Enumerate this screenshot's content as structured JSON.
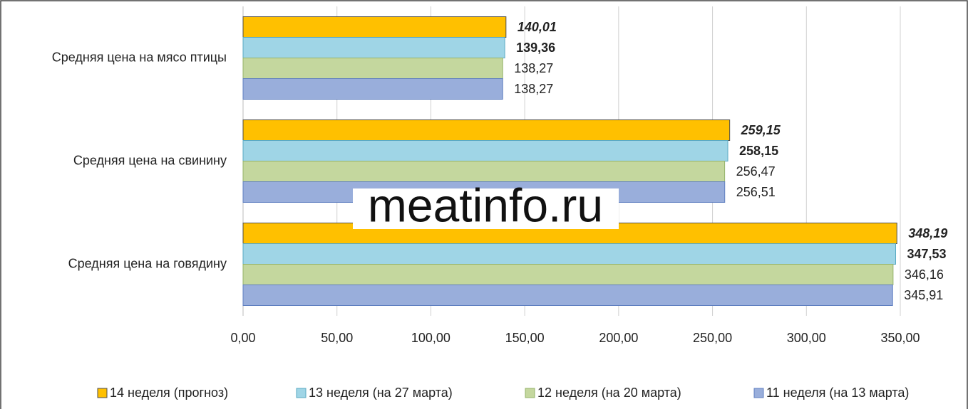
{
  "chart_data": {
    "type": "hbar",
    "categories": [
      "Средняя цена на мясо птицы",
      "Средняя цена на свинину",
      "Средняя цена на говядину"
    ],
    "series": [
      {
        "name": "14 неделя (прогноз)",
        "color": "#ffc000",
        "values": [
          140.01,
          259.15,
          348.19
        ],
        "value_labels": [
          "140,01",
          "259,15",
          "348,19"
        ]
      },
      {
        "name": "13 неделя (на 27 марта)",
        "color": "#9fd5e6",
        "values": [
          139.36,
          258.15,
          347.53
        ],
        "value_labels": [
          "139,36",
          "258,15",
          "347,53"
        ]
      },
      {
        "name": "12 неделя (на 20 марта)",
        "color": "#c4d79e",
        "values": [
          138.27,
          256.47,
          346.16
        ],
        "value_labels": [
          "138,27",
          "256,47",
          "346,16"
        ]
      },
      {
        "name": "11 неделя (на 13 марта)",
        "color": "#99aedb",
        "values": [
          138.27,
          256.51,
          345.91
        ],
        "value_labels": [
          "138,27",
          "256,51",
          "345,91"
        ]
      }
    ],
    "xlim": [
      0,
      350
    ],
    "xticks": [
      {
        "value": 0,
        "label": "0,00"
      },
      {
        "value": 50,
        "label": "50,00"
      },
      {
        "value": 100,
        "label": "100,00"
      },
      {
        "value": 150,
        "label": "150,00"
      },
      {
        "value": 200,
        "label": "200,00"
      },
      {
        "value": 250,
        "label": "250,00"
      },
      {
        "value": 300,
        "label": "300,00"
      },
      {
        "value": 350,
        "label": "350,00"
      }
    ],
    "grid": true,
    "legend": "bottom",
    "watermark": "meatinfo.ru"
  }
}
